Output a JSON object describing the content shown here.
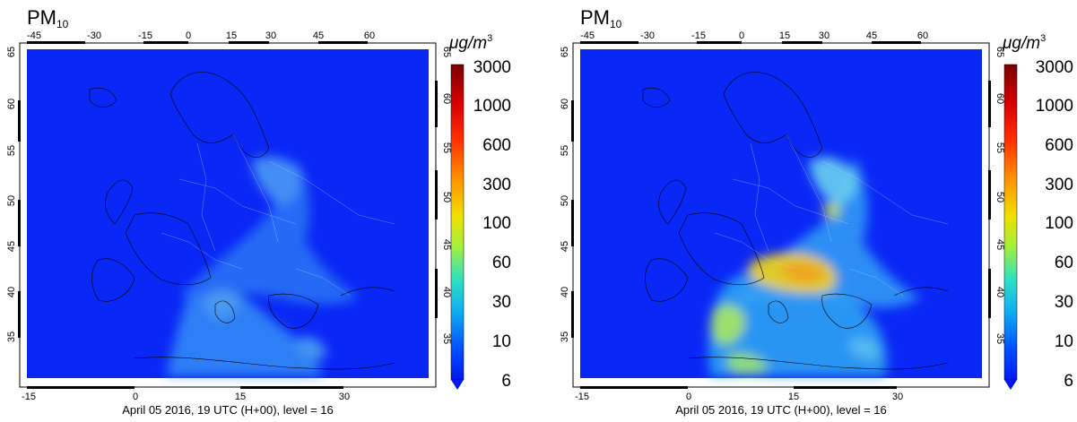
{
  "panels": [
    {
      "title_main": "PM",
      "title_sub": "10",
      "caption": "April 05 2016, 19 UTC (H+00), level = 16",
      "top_ticks": [
        "-45",
        "-30",
        "-15",
        "0",
        "15",
        "30",
        "45",
        "60"
      ],
      "bottom_ticks": [
        "-15",
        "0",
        "15",
        "30"
      ],
      "left_ticks": [
        "65",
        "60",
        "55",
        "50",
        "45",
        "40",
        "35"
      ],
      "right_ticks": [
        "65",
        "60",
        "55",
        "50",
        "45",
        "40",
        "35"
      ],
      "colorbar_unit_prefix": "μg/m",
      "colorbar_unit_sup": "3",
      "colorbar_labels": [
        "3000",
        "1000",
        "600",
        "300",
        "100",
        "60",
        "30",
        "10",
        "6"
      ]
    },
    {
      "title_main": "PM",
      "title_sub": "10",
      "caption": "April 05 2016, 19 UTC (H+00), level = 16",
      "top_ticks": [
        "-45",
        "-30",
        "-15",
        "0",
        "15",
        "30",
        "45",
        "60"
      ],
      "bottom_ticks": [
        "-15",
        "0",
        "15",
        "30"
      ],
      "left_ticks": [
        "65",
        "60",
        "55",
        "50",
        "45",
        "40",
        "35"
      ],
      "right_ticks": [
        "65",
        "60",
        "55",
        "50",
        "45",
        "40",
        "35"
      ],
      "colorbar_unit_prefix": "μg/m",
      "colorbar_unit_sup": "3",
      "colorbar_labels": [
        "3000",
        "1000",
        "600",
        "300",
        "100",
        "60",
        "30",
        "10",
        "6"
      ]
    }
  ],
  "colors": {
    "background_field": "#0a28f5",
    "colorbar_stops": [
      "#7a0000",
      "#d40000",
      "#ff3000",
      "#ff9000",
      "#f0e000",
      "#a0f040",
      "#30e0c0",
      "#10b0f0",
      "#0050ff",
      "#0018f0"
    ]
  }
}
